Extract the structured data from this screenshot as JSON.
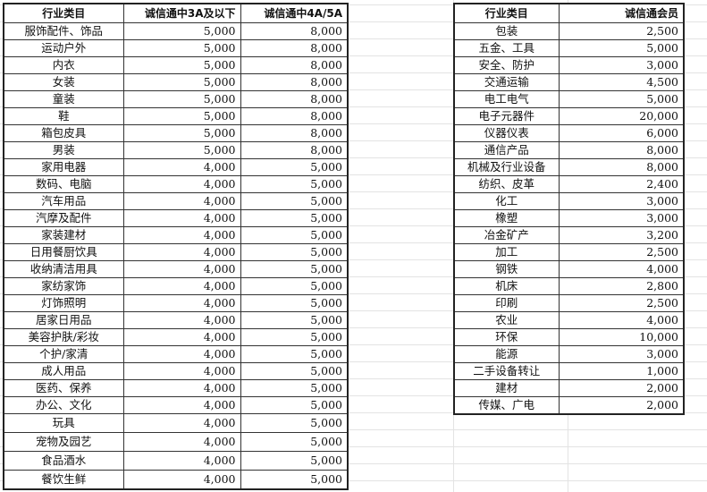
{
  "left_table": {
    "headers": [
      "行业类目",
      "诚信通中3A及以下",
      "诚信通中4A/5A"
    ],
    "rows": [
      [
        "服饰配件、饰品",
        "5,000",
        "8,000"
      ],
      [
        "运动户外",
        "5,000",
        "8,000"
      ],
      [
        "内衣",
        "5,000",
        "8,000"
      ],
      [
        "女装",
        "5,000",
        "8,000"
      ],
      [
        "童装",
        "5,000",
        "8,000"
      ],
      [
        "鞋",
        "5,000",
        "8,000"
      ],
      [
        "箱包皮具",
        "5,000",
        "8,000"
      ],
      [
        "男装",
        "5,000",
        "8,000"
      ],
      [
        "家用电器",
        "4,000",
        "5,000"
      ],
      [
        "数码、电脑",
        "4,000",
        "5,000"
      ],
      [
        "汽车用品",
        "4,000",
        "5,000"
      ],
      [
        "汽摩及配件",
        "4,000",
        "5,000"
      ],
      [
        "家装建材",
        "4,000",
        "5,000"
      ],
      [
        "日用餐厨饮具",
        "4,000",
        "5,000"
      ],
      [
        "收纳清洁用具",
        "4,000",
        "5,000"
      ],
      [
        "家纺家饰",
        "4,000",
        "5,000"
      ],
      [
        "灯饰照明",
        "4,000",
        "5,000"
      ],
      [
        "居家日用品",
        "4,000",
        "5,000"
      ],
      [
        "美容护肤/彩妆",
        "4,000",
        "5,000"
      ],
      [
        "个护/家清",
        "4,000",
        "5,000"
      ],
      [
        "成人用品",
        "4,000",
        "5,000"
      ],
      [
        "医药、保养",
        "4,000",
        "5,000"
      ],
      [
        "办公、文化",
        "4,000",
        "5,000"
      ],
      [
        "玩具",
        "4,000",
        "5,000"
      ],
      [
        "宠物及园艺",
        "4,000",
        "5,000"
      ],
      [
        "食品酒水",
        "4,000",
        "5,000"
      ],
      [
        "餐饮生鲜",
        "4,000",
        "5,000"
      ]
    ]
  },
  "right_table": {
    "headers": [
      "行业类目",
      "诚信通会员"
    ],
    "rows": [
      [
        "包装",
        "2,500"
      ],
      [
        "五金、工具",
        "5,000"
      ],
      [
        "安全、防护",
        "3,000"
      ],
      [
        "交通运输",
        "4,500"
      ],
      [
        "电工电气",
        "5,000"
      ],
      [
        "电子元器件",
        "20,000"
      ],
      [
        "仪器仪表",
        "6,000"
      ],
      [
        "通信产品",
        "8,000"
      ],
      [
        "机械及行业设备",
        "8,000"
      ],
      [
        "纺织、皮革",
        "2,400"
      ],
      [
        "化工",
        "3,000"
      ],
      [
        "橡塑",
        "3,000"
      ],
      [
        "冶金矿产",
        "3,200"
      ],
      [
        "加工",
        "2,500"
      ],
      [
        "钢铁",
        "4,000"
      ],
      [
        "机床",
        "2,800"
      ],
      [
        "印刷",
        "2,500"
      ],
      [
        "农业",
        "4,000"
      ],
      [
        "环保",
        "10,000"
      ],
      [
        "能源",
        "3,000"
      ],
      [
        "二手设备转让",
        "1,000"
      ],
      [
        "建材",
        "2,000"
      ],
      [
        "传媒、广电",
        "2,000"
      ]
    ]
  }
}
